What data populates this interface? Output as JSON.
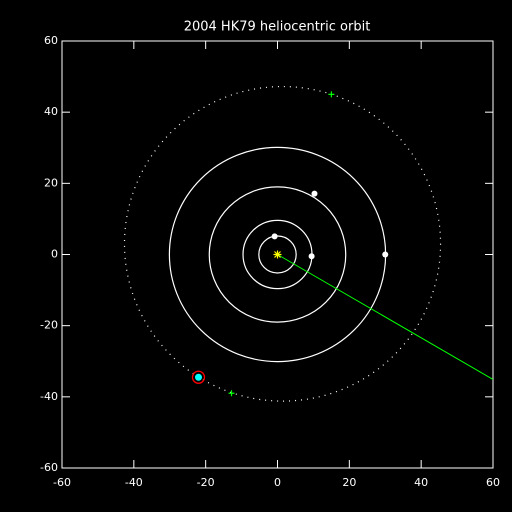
{
  "chart_data": {
    "type": "orbit",
    "title": "2004 HK79 heliocentric orbit",
    "xlim": [
      -60,
      60
    ],
    "ylim": [
      -60,
      60
    ],
    "xticks": [
      -60,
      -40,
      -20,
      0,
      20,
      40,
      60
    ],
    "yticks": [
      -60,
      -40,
      -20,
      0,
      20,
      40,
      60
    ],
    "orbit_color": "#ffffff",
    "orbits": [
      5.2,
      9.6,
      19.0,
      30.1
    ],
    "planets": {
      "x": [
        -0.8,
        9.5,
        10.3,
        30.0
      ],
      "y": [
        5.1,
        -0.5,
        17.1,
        0.0
      ],
      "color": "#ffffff"
    },
    "object_orbit": {
      "cx": 1.4,
      "cy": 3.0,
      "rx": 44.0,
      "ry": 44.2
    },
    "crosses": {
      "x": [
        15.0,
        -12.8
      ],
      "y": [
        45.0,
        -39.0
      ],
      "color": "#00ff00"
    },
    "object": {
      "x": -22.0,
      "y": -34.5,
      "color": "#00ffff",
      "ring_color": "#ff0000"
    },
    "sun": {
      "x": 0,
      "y": 0,
      "color": "#ffff00"
    },
    "sightline": {
      "x": [
        0,
        60
      ],
      "y": [
        0,
        -35.1
      ],
      "color": "#00ff00"
    }
  }
}
